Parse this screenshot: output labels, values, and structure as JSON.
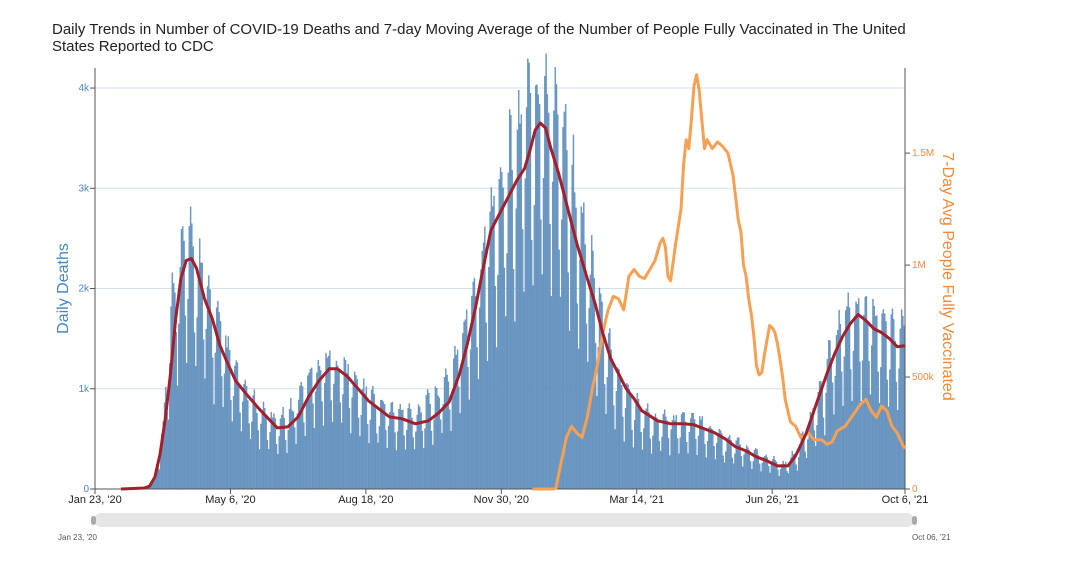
{
  "title": "Daily Trends in Number of COVID-19 Deaths and 7-day Moving Average of the Number of People Fully Vaccinated in The United States Reported to CDC",
  "slider": {
    "start_label": "Jan 23, '20",
    "end_label": "Oct 06, '21"
  },
  "colors": {
    "bars": "#6f9cc6",
    "bar_edge": "#4d7fb0",
    "death_avg": "#a31f2b",
    "vacc": "#f5a052",
    "left_axis": "#4a86c0",
    "right_axis": "#f08a3c",
    "grid": "#cfe0ee"
  },
  "chart_data": {
    "type": "bar",
    "title": "Daily Trends in Number of COVID-19 Deaths and 7-day Moving Average of the Number of People Fully Vaccinated in The United States Reported to CDC",
    "xlabel": "",
    "ylabel": "Daily Deaths",
    "y2label": "7-Day Avg People Fully Vaccinated",
    "x_range_days": [
      0,
      622
    ],
    "ylim": [
      0,
      4200
    ],
    "y2lim": [
      0,
      1880000
    ],
    "x_ticks": [
      {
        "day": 0,
        "label": "Jan 23, '20"
      },
      {
        "day": 104,
        "label": "May 6, '20"
      },
      {
        "day": 208,
        "label": "Aug 18, '20"
      },
      {
        "day": 312,
        "label": "Nov 30, '20"
      },
      {
        "day": 416,
        "label": "Mar 14, '21"
      },
      {
        "day": 520,
        "label": "Jun 26, '21"
      },
      {
        "day": 622,
        "label": "Oct 6, '21"
      }
    ],
    "y_ticks": [
      {
        "v": 0,
        "label": "0"
      },
      {
        "v": 1000,
        "label": "1k"
      },
      {
        "v": 2000,
        "label": "2k"
      },
      {
        "v": 3000,
        "label": "3k"
      },
      {
        "v": 4000,
        "label": "4k"
      }
    ],
    "y2_ticks": [
      {
        "v": 0,
        "label": "0"
      },
      {
        "v": 500000,
        "label": "500k"
      },
      {
        "v": 1000000,
        "label": "1M"
      },
      {
        "v": 1500000,
        "label": "1.5M"
      }
    ],
    "series": [
      {
        "name": "Daily Deaths",
        "kind": "bars",
        "axis": "left",
        "smooth_shape_day_value": [
          [
            0,
            0
          ],
          [
            38,
            0
          ],
          [
            45,
            80
          ],
          [
            52,
            600
          ],
          [
            60,
            1900
          ],
          [
            68,
            2250
          ],
          [
            76,
            2200
          ],
          [
            86,
            1800
          ],
          [
            96,
            1450
          ],
          [
            108,
            1050
          ],
          [
            122,
            780
          ],
          [
            138,
            620
          ],
          [
            150,
            720
          ],
          [
            166,
            1080
          ],
          [
            178,
            1200
          ],
          [
            190,
            1130
          ],
          [
            204,
            920
          ],
          [
            218,
            780
          ],
          [
            232,
            700
          ],
          [
            246,
            700
          ],
          [
            260,
            830
          ],
          [
            272,
            1050
          ],
          [
            282,
            1420
          ],
          [
            292,
            1900
          ],
          [
            302,
            2450
          ],
          [
            314,
            2880
          ],
          [
            324,
            3250
          ],
          [
            334,
            3550
          ],
          [
            342,
            3700
          ],
          [
            350,
            3600
          ],
          [
            360,
            3250
          ],
          [
            370,
            2650
          ],
          [
            380,
            2050
          ],
          [
            390,
            1500
          ],
          [
            402,
            1000
          ],
          [
            414,
            780
          ],
          [
            426,
            680
          ],
          [
            440,
            650
          ],
          [
            456,
            640
          ],
          [
            470,
            580
          ],
          [
            482,
            480
          ],
          [
            494,
            420
          ],
          [
            506,
            330
          ],
          [
            518,
            280
          ],
          [
            528,
            220
          ],
          [
            538,
            330
          ],
          [
            550,
            650
          ],
          [
            560,
            1050
          ],
          [
            568,
            1400
          ],
          [
            578,
            1620
          ],
          [
            586,
            1650
          ],
          [
            596,
            1600
          ],
          [
            606,
            1500
          ],
          [
            614,
            1430
          ],
          [
            622,
            1400
          ]
        ]
      },
      {
        "name": "7-day Moving Average of Deaths",
        "kind": "line",
        "axis": "left",
        "points": [
          [
            20,
            0
          ],
          [
            38,
            10
          ],
          [
            42,
            30
          ],
          [
            46,
            120
          ],
          [
            50,
            350
          ],
          [
            54,
            700
          ],
          [
            58,
            1150
          ],
          [
            62,
            1700
          ],
          [
            66,
            2100
          ],
          [
            70,
            2280
          ],
          [
            74,
            2300
          ],
          [
            78,
            2200
          ],
          [
            84,
            1900
          ],
          [
            90,
            1700
          ],
          [
            96,
            1430
          ],
          [
            102,
            1250
          ],
          [
            108,
            1080
          ],
          [
            116,
            950
          ],
          [
            126,
            800
          ],
          [
            134,
            690
          ],
          [
            140,
            610
          ],
          [
            148,
            620
          ],
          [
            156,
            720
          ],
          [
            164,
            920
          ],
          [
            172,
            1080
          ],
          [
            180,
            1200
          ],
          [
            186,
            1200
          ],
          [
            194,
            1120
          ],
          [
            202,
            1000
          ],
          [
            210,
            880
          ],
          [
            218,
            800
          ],
          [
            226,
            720
          ],
          [
            236,
            700
          ],
          [
            246,
            650
          ],
          [
            256,
            680
          ],
          [
            264,
            760
          ],
          [
            272,
            870
          ],
          [
            280,
            1150
          ],
          [
            286,
            1450
          ],
          [
            292,
            1800
          ],
          [
            298,
            2200
          ],
          [
            304,
            2580
          ],
          [
            312,
            2780
          ],
          [
            318,
            2930
          ],
          [
            324,
            3080
          ],
          [
            330,
            3200
          ],
          [
            334,
            3380
          ],
          [
            338,
            3580
          ],
          [
            342,
            3650
          ],
          [
            346,
            3600
          ],
          [
            350,
            3400
          ],
          [
            356,
            3150
          ],
          [
            362,
            2850
          ],
          [
            370,
            2450
          ],
          [
            378,
            2100
          ],
          [
            384,
            1850
          ],
          [
            390,
            1550
          ],
          [
            396,
            1300
          ],
          [
            402,
            1150
          ],
          [
            408,
            1000
          ],
          [
            414,
            900
          ],
          [
            420,
            780
          ],
          [
            426,
            730
          ],
          [
            432,
            680
          ],
          [
            442,
            650
          ],
          [
            452,
            650
          ],
          [
            460,
            640
          ],
          [
            468,
            600
          ],
          [
            476,
            560
          ],
          [
            484,
            500
          ],
          [
            492,
            420
          ],
          [
            500,
            380
          ],
          [
            508,
            320
          ],
          [
            516,
            280
          ],
          [
            524,
            230
          ],
          [
            532,
            230
          ],
          [
            538,
            330
          ],
          [
            546,
            550
          ],
          [
            554,
            850
          ],
          [
            562,
            1150
          ],
          [
            568,
            1350
          ],
          [
            574,
            1520
          ],
          [
            580,
            1650
          ],
          [
            586,
            1740
          ],
          [
            592,
            1680
          ],
          [
            598,
            1600
          ],
          [
            604,
            1560
          ],
          [
            610,
            1500
          ],
          [
            616,
            1420
          ],
          [
            622,
            1430
          ]
        ]
      },
      {
        "name": "7-Day Avg People Fully Vaccinated",
        "kind": "line",
        "axis": "right",
        "points": [
          [
            336,
            0
          ],
          [
            352,
            0
          ],
          [
            354,
            5000
          ],
          [
            358,
            120000
          ],
          [
            362,
            230000
          ],
          [
            366,
            280000
          ],
          [
            370,
            250000
          ],
          [
            374,
            230000
          ],
          [
            378,
            320000
          ],
          [
            382,
            450000
          ],
          [
            386,
            560000
          ],
          [
            390,
            700000
          ],
          [
            394,
            800000
          ],
          [
            398,
            860000
          ],
          [
            402,
            850000
          ],
          [
            406,
            800000
          ],
          [
            410,
            950000
          ],
          [
            414,
            980000
          ],
          [
            418,
            950000
          ],
          [
            422,
            940000
          ],
          [
            426,
            980000
          ],
          [
            430,
            1020000
          ],
          [
            434,
            1100000
          ],
          [
            436,
            1120000
          ],
          [
            438,
            1080000
          ],
          [
            440,
            950000
          ],
          [
            442,
            930000
          ],
          [
            446,
            1100000
          ],
          [
            450,
            1250000
          ],
          [
            452,
            1450000
          ],
          [
            454,
            1560000
          ],
          [
            456,
            1520000
          ],
          [
            458,
            1650000
          ],
          [
            460,
            1800000
          ],
          [
            462,
            1850000
          ],
          [
            464,
            1780000
          ],
          [
            466,
            1650000
          ],
          [
            468,
            1520000
          ],
          [
            470,
            1560000
          ],
          [
            474,
            1520000
          ],
          [
            478,
            1550000
          ],
          [
            482,
            1530000
          ],
          [
            486,
            1500000
          ],
          [
            488,
            1450000
          ],
          [
            490,
            1400000
          ],
          [
            492,
            1300000
          ],
          [
            494,
            1200000
          ],
          [
            496,
            1150000
          ],
          [
            498,
            1000000
          ],
          [
            500,
            950000
          ],
          [
            502,
            850000
          ],
          [
            504,
            780000
          ],
          [
            506,
            680000
          ],
          [
            508,
            550000
          ],
          [
            510,
            510000
          ],
          [
            512,
            520000
          ],
          [
            514,
            600000
          ],
          [
            518,
            730000
          ],
          [
            520,
            720000
          ],
          [
            522,
            700000
          ],
          [
            524,
            650000
          ],
          [
            526,
            580000
          ],
          [
            528,
            500000
          ],
          [
            530,
            400000
          ],
          [
            534,
            300000
          ],
          [
            538,
            280000
          ],
          [
            542,
            230000
          ],
          [
            548,
            250000
          ],
          [
            552,
            220000
          ],
          [
            558,
            220000
          ],
          [
            562,
            200000
          ],
          [
            566,
            210000
          ],
          [
            570,
            260000
          ],
          [
            576,
            280000
          ],
          [
            582,
            330000
          ],
          [
            588,
            380000
          ],
          [
            592,
            400000
          ],
          [
            596,
            350000
          ],
          [
            600,
            320000
          ],
          [
            604,
            370000
          ],
          [
            608,
            350000
          ],
          [
            612,
            280000
          ],
          [
            616,
            250000
          ],
          [
            620,
            200000
          ],
          [
            622,
            180000
          ]
        ]
      }
    ]
  }
}
